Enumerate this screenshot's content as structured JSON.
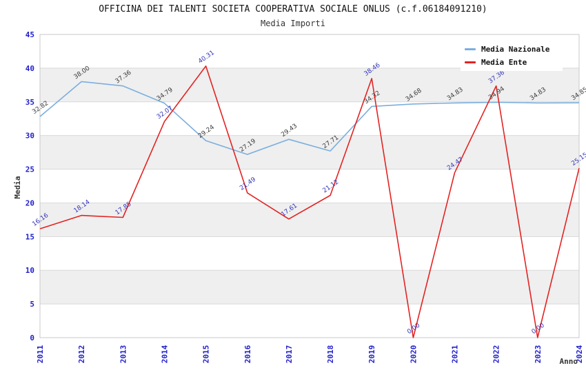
{
  "header": {
    "title": "OFFICINA DEI TALENTI SOCIETA COOPERATIVA SOCIALE ONLUS (c.f.06184091210)",
    "subtitle": "Media Importi"
  },
  "legend": {
    "items": [
      {
        "label": "Media Nazionale",
        "color": "#7aaede"
      },
      {
        "label": "Media Ente",
        "color": "#e32222"
      }
    ]
  },
  "axes": {
    "y_title": "Media",
    "x_title": "Anno",
    "y_ticks": [
      0,
      5,
      10,
      15,
      20,
      25,
      30,
      35,
      40,
      45
    ],
    "tick_color": "#2020cc"
  },
  "colors": {
    "band": "#efefef",
    "gridline": "#d9d9d9",
    "plot_border": "#c9c9c9",
    "nazionale_line": "#7aaede",
    "ente_line": "#e32222",
    "nazionale_label": "#3a3a3a",
    "ente_label": "#3434b8"
  },
  "chart_data": {
    "type": "line",
    "title": "OFFICINA DEI TALENTI SOCIETA COOPERATIVA SOCIALE ONLUS (c.f.06184091210)",
    "subtitle": "Media Importi",
    "xlabel": "Anno",
    "ylabel": "Media",
    "ylim": [
      0,
      45
    ],
    "y_tick_step": 5,
    "grid": true,
    "alternating_bands": true,
    "legend_position": "top-right",
    "categories": [
      "2011",
      "2012",
      "2013",
      "2014",
      "2015",
      "2016",
      "2017",
      "2018",
      "2019",
      "2020",
      "2021",
      "2022",
      "2023",
      "2024"
    ],
    "series": [
      {
        "name": "Media Nazionale",
        "color": "#7aaede",
        "label_color": "#3a3a3a",
        "values": [
          32.82,
          38.0,
          37.36,
          34.79,
          29.24,
          27.19,
          29.43,
          27.71,
          34.32,
          34.68,
          34.83,
          34.94,
          34.83,
          34.85
        ]
      },
      {
        "name": "Media Ente",
        "color": "#e32222",
        "label_color": "#3434b8",
        "values": [
          16.16,
          18.14,
          17.85,
          32.07,
          40.31,
          21.49,
          17.61,
          21.12,
          38.46,
          0.0,
          24.47,
          37.36,
          0.0,
          25.15
        ]
      }
    ]
  }
}
